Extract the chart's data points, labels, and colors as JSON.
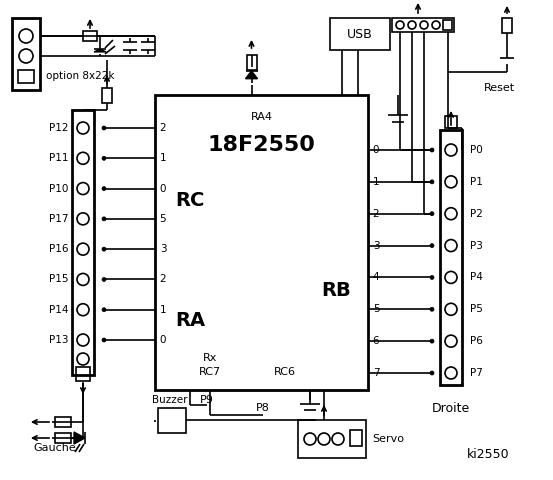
{
  "title": "ki2550",
  "bg_color": "#ffffff",
  "chip_label": "18F2550",
  "chip_ra4": "RA4",
  "chip_rc": "RC",
  "chip_ra": "RA",
  "chip_rb": "RB",
  "chip_rx": "Rx",
  "chip_rc7": "RC7",
  "chip_rc6": "RC6",
  "left_labels": [
    "P12",
    "P11",
    "P10",
    "P17",
    "P16",
    "P15",
    "P14",
    "P13"
  ],
  "left_rc_pins": [
    "2",
    "1",
    "0"
  ],
  "left_ra_pins": [
    "5",
    "3",
    "2",
    "1",
    "0"
  ],
  "right_rb_pins": [
    "0",
    "1",
    "2",
    "3",
    "4",
    "5",
    "6",
    "7"
  ],
  "right_labels": [
    "P0",
    "P1",
    "P2",
    "P3",
    "P4",
    "P5",
    "P6",
    "P7"
  ],
  "gauche_text": "Gauche",
  "buzzer_text": "Buzzer",
  "p9_text": "P9",
  "p8_text": "P8",
  "servo_text": "Servo",
  "option_text": "option 8x22k",
  "usb_text": "USB",
  "reset_text": "Reset",
  "droite_text": "Droite"
}
